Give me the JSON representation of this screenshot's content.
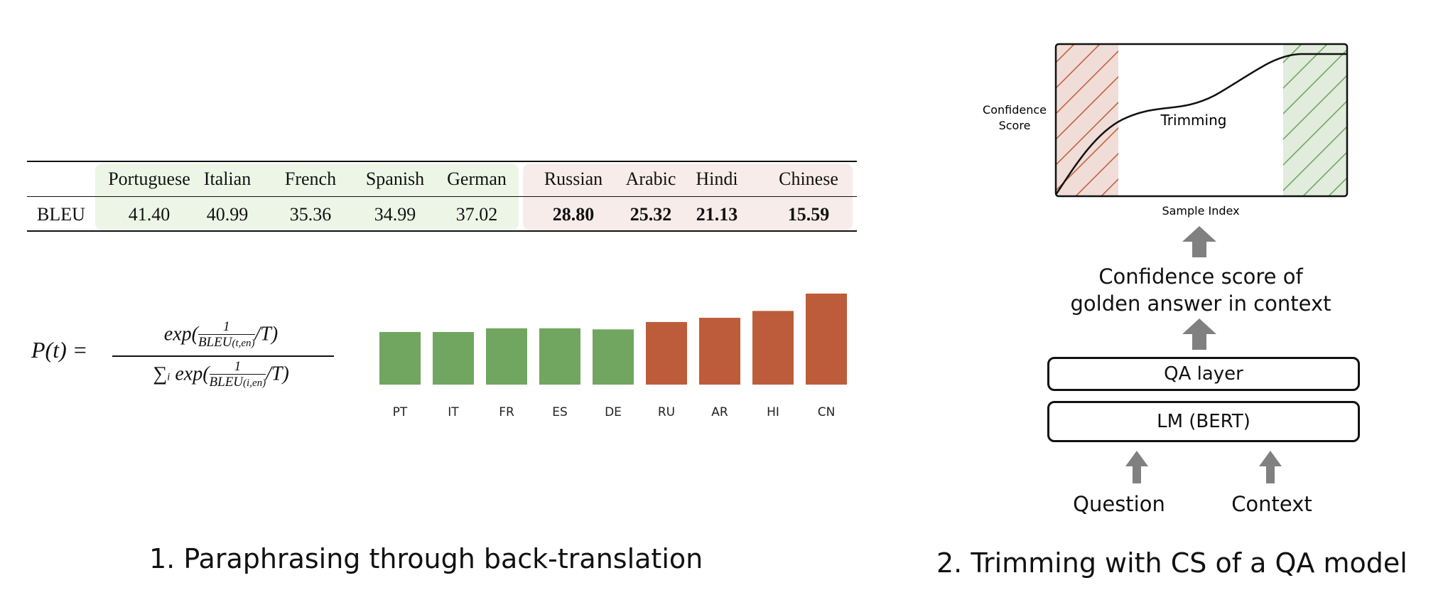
{
  "left_panel": {
    "title": "1. Paraphrasing through back-translation",
    "table": {
      "row_label": "BLEU",
      "columns": [
        {
          "name": "Portuguese",
          "value": "41.40",
          "group": "high"
        },
        {
          "name": "Italian",
          "value": "40.99",
          "group": "high"
        },
        {
          "name": "French",
          "value": "35.36",
          "group": "high"
        },
        {
          "name": "Spanish",
          "value": "34.99",
          "group": "high"
        },
        {
          "name": "German",
          "value": "37.02",
          "group": "high"
        },
        {
          "name": "Russian",
          "value": "28.80",
          "group": "low"
        },
        {
          "name": "Arabic",
          "value": "25.32",
          "group": "low"
        },
        {
          "name": "Hindi",
          "value": "21.13",
          "group": "low"
        },
        {
          "name": "Chinese",
          "value": "15.59",
          "group": "low"
        }
      ],
      "colors": {
        "high_bg": "#edf6e6",
        "low_bg": "#f8ecea"
      }
    },
    "formula": {
      "lhs": "P(t) =",
      "numerator": "exp( 1 / BLEU(t,en) / T)",
      "denominator": "∑i exp( 1 / BLEU(i,en) / T)"
    }
  },
  "chart_data": {
    "type": "bar",
    "categories": [
      "PT",
      "IT",
      "FR",
      "ES",
      "DE",
      "RU",
      "AR",
      "HI",
      "CN"
    ],
    "values": [
      1,
      1,
      1.07,
      1.07,
      1.05,
      1.19,
      1.27,
      1.4,
      1.73
    ],
    "ylim": [
      0,
      1.8
    ],
    "colors": {
      "high": "#70a660",
      "low": "#bd5c3b"
    },
    "groups": [
      "high",
      "high",
      "high",
      "high",
      "high",
      "low",
      "low",
      "low",
      "low"
    ]
  },
  "right_panel": {
    "title": "2. Trimming with CS of a QA model",
    "plot": {
      "ylabel_line1": "Confidence",
      "ylabel_line2": "Score",
      "xlabel": "Sample Index",
      "center_label": "Trimming",
      "colors": {
        "left_region": "#f0ddd7",
        "left_hatch": "#c4603f",
        "right_region": "#e1ecdd",
        "right_hatch": "#72a664"
      }
    },
    "output_line1": "Confidence score of",
    "output_line2": "golden answer in context",
    "qa_layer": "QA layer",
    "lm_layer": "LM (BERT)",
    "input_question": "Question",
    "input_context": "Context",
    "arrow_color": "#808080"
  }
}
